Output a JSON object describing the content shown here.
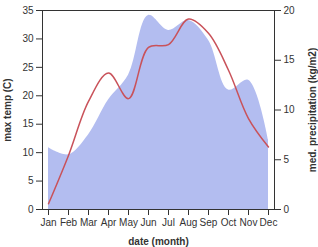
{
  "chart_data": {
    "type": "line",
    "x_label": "date (month)",
    "y_label": "max temp (C)",
    "y2_label": "med. precipitation (kg/m2)",
    "categories": [
      "Jan",
      "Feb",
      "Mar",
      "Apr",
      "May",
      "Jun",
      "Jul",
      "Aug",
      "Sep",
      "Oct",
      "Nov",
      "Dec"
    ],
    "series": [
      {
        "name": "med. precipitation",
        "type": "area",
        "axis": "y2",
        "color": "#b3bdf0",
        "values": [
          6.2,
          5.5,
          7.5,
          11,
          13.5,
          19.5,
          18,
          19,
          17,
          12,
          13,
          7
        ]
      },
      {
        "name": "max temp",
        "type": "line",
        "axis": "y",
        "color": "#c9525a",
        "values": [
          1,
          9.5,
          19,
          24,
          19.5,
          28.5,
          29,
          33.5,
          31,
          24.5,
          16,
          11
        ]
      }
    ],
    "ylim": [
      0,
      35
    ],
    "yticks": [
      0,
      5,
      10,
      15,
      20,
      25,
      30,
      35
    ],
    "y2lim": [
      0,
      20
    ],
    "y2ticks": [
      0,
      5,
      10,
      15,
      20
    ]
  }
}
